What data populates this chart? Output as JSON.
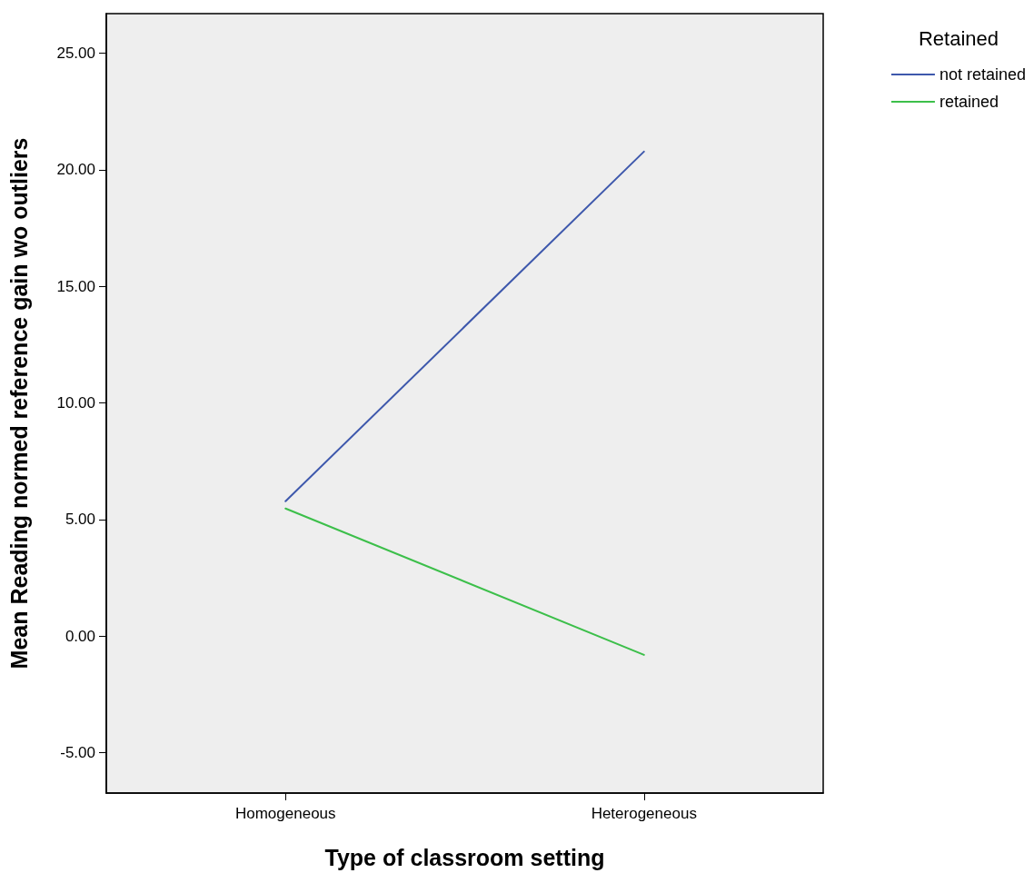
{
  "chart_data": {
    "type": "line",
    "xlabel": "Type of classroom setting",
    "ylabel": "Mean Reading normed reference gain wo outliers",
    "legend_title": "Retained",
    "categories": [
      "Homogeneous",
      "Heterogeneous"
    ],
    "series": [
      {
        "name": "not retained",
        "color": "#3e58ac",
        "values": [
          5.78,
          20.78
        ]
      },
      {
        "name": "retained",
        "color": "#3cbf4a",
        "values": [
          5.47,
          -0.81
        ]
      }
    ],
    "ylim": [
      -6.74,
      26.7
    ],
    "yticks": [
      {
        "value": -5,
        "label": "-5.00"
      },
      {
        "value": 0,
        "label": "0.00"
      },
      {
        "value": 5,
        "label": "5.00"
      },
      {
        "value": 10,
        "label": "10.00"
      },
      {
        "value": 15,
        "label": "15.00"
      },
      {
        "value": 20,
        "label": "20.00"
      },
      {
        "value": 25,
        "label": "25.00"
      }
    ],
    "grid": false,
    "legend": "top right",
    "marker": "none",
    "line_style": "solid"
  }
}
